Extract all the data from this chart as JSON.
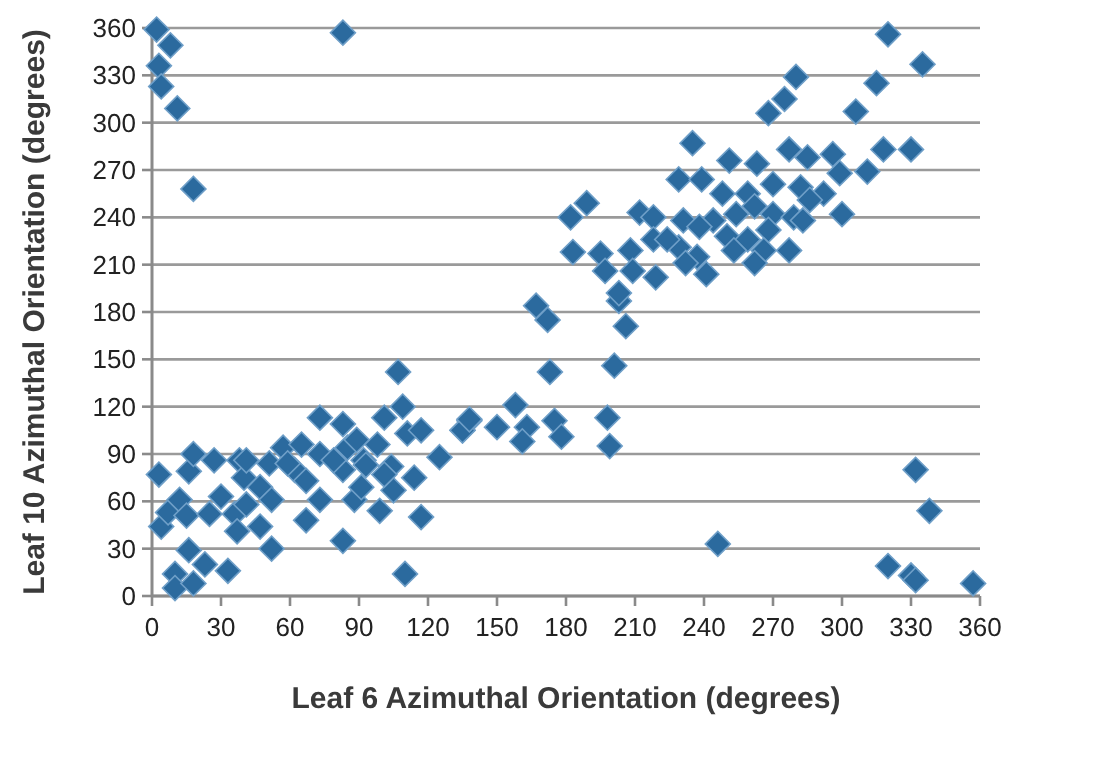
{
  "chart_data": {
    "type": "scatter",
    "xlabel": "Leaf 6 Azimuthal Orientation (degrees)",
    "ylabel": "Leaf 10 Azimuthal Orientation (degrees)",
    "xlim": [
      0,
      360
    ],
    "ylim": [
      0,
      360
    ],
    "xticks": [
      0,
      30,
      60,
      90,
      120,
      150,
      180,
      210,
      240,
      270,
      300,
      330,
      360
    ],
    "yticks": [
      0,
      30,
      60,
      90,
      120,
      150,
      180,
      210,
      240,
      270,
      300,
      330,
      360
    ],
    "grid": "y",
    "marker": "diamond",
    "series": [
      {
        "color": "#2b6a9e",
        "x": [
          2,
          8,
          3,
          4,
          11,
          18,
          83,
          332,
          338,
          246,
          320,
          330,
          332,
          357,
          167,
          172,
          173,
          203,
          206,
          201,
          158,
          138,
          150,
          163,
          161,
          175,
          178,
          198,
          199,
          135,
          320,
          335,
          315,
          306,
          280,
          275,
          268,
          318,
          330,
          311,
          300,
          235,
          182,
          189,
          183,
          195,
          197,
          208,
          209,
          203,
          219,
          212,
          218,
          218,
          231,
          229,
          237,
          241,
          229,
          239,
          251,
          263,
          277,
          285,
          296,
          299,
          248,
          259,
          270,
          282,
          292,
          244,
          254,
          262,
          270,
          279,
          286,
          250,
          259,
          268,
          283,
          253,
          266,
          277,
          262,
          238,
          224,
          232,
          3,
          16,
          18,
          27,
          38,
          4,
          7,
          12,
          15,
          16,
          10,
          10,
          18,
          23,
          33,
          25,
          30,
          36,
          37,
          41,
          40,
          47,
          47,
          52,
          52,
          51,
          57,
          62,
          65,
          67,
          67,
          73,
          73,
          73,
          83,
          83,
          83,
          85,
          88,
          89,
          92,
          91,
          98,
          99,
          101,
          104,
          105,
          107,
          109,
          111,
          117,
          114,
          117,
          110,
          125,
          135,
          138,
          101,
          93,
          79,
          59,
          41
        ],
        "values": [
          359,
          349,
          336,
          323,
          309,
          258,
          357,
          80,
          54,
          33,
          19,
          13,
          10,
          8,
          184,
          175,
          142,
          187,
          171,
          146,
          121,
          111,
          107,
          107,
          98,
          111,
          101,
          113,
          95,
          105,
          356,
          337,
          325,
          307,
          329,
          315,
          306,
          283,
          283,
          269,
          242,
          287,
          240,
          249,
          218,
          217,
          206,
          219,
          206,
          192,
          202,
          243,
          240,
          226,
          238,
          221,
          215,
          204,
          264,
          264,
          276,
          274,
          283,
          278,
          280,
          268,
          255,
          255,
          261,
          259,
          255,
          238,
          242,
          247,
          242,
          240,
          251,
          228,
          226,
          232,
          238,
          219,
          219,
          219,
          211,
          234,
          226,
          211,
          77,
          79,
          90,
          86,
          86,
          44,
          53,
          61,
          51,
          29,
          14,
          5,
          8,
          20,
          16,
          52,
          63,
          52,
          41,
          58,
          75,
          69,
          44,
          30,
          61,
          84,
          94,
          80,
          96,
          48,
          73,
          113,
          61,
          90,
          109,
          80,
          35,
          94,
          61,
          99,
          86,
          69,
          96,
          54,
          113,
          82,
          67,
          142,
          120,
          103,
          105,
          75,
          50,
          14,
          88,
          105,
          112,
          77,
          83,
          86,
          84,
          86
        ]
      }
    ]
  }
}
